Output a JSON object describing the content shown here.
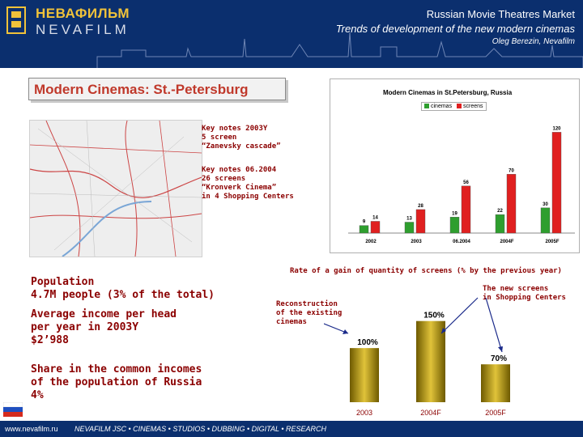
{
  "header": {
    "logo_ru": "НЕВАФИЛЬМ",
    "logo_en": "NEVAFILM",
    "title": "Russian Movie Theatres Market",
    "subtitle": "Trends of development of the new modern cinemas",
    "author": "Oleg Berezin, Nevafilm"
  },
  "section_title": "Modern Cinemas: St.-Petersburg",
  "notes": {
    "n2003": "Key notes 2003Y\n5 screen\n“Zanevsky cascade”",
    "n2004": "Key notes 06.2004\n26 screens\n“Kronverk Cinema”\nin 4 Shopping Centers"
  },
  "stats": {
    "population": "Population\n4.7M people (3% of the total)",
    "income": "Average income per head\nper year in 2003Y\n$2’988",
    "share": "Share in the common incomes\nof the population of Russia\n4%"
  },
  "annotations": {
    "rate_title": "Rate of a gain of quantity of screens (% by the previous year)",
    "new_screens": "The new screens\nin Shopping Centers",
    "reconstruction": "Reconstruction\nof the existing\ncinemas"
  },
  "footer": {
    "url": "www.nevafilm.ru",
    "tagline": "NEVAFILM JSC • CINEMAS • STUDIOS • DUBBING • DIGITAL • RESEARCH"
  },
  "colors": {
    "header_bg": "#0b2f6e",
    "accent_red": "#8b0000",
    "cinemas": "#2e9e2e",
    "screens": "#e02020",
    "gold": "#b8960a"
  },
  "chart_data": [
    {
      "type": "bar",
      "title": "Modern Cinemas in St.Petersburg, Russia",
      "categories": [
        "2002",
        "2003",
        "06.2004",
        "2004F",
        "2005F"
      ],
      "series": [
        {
          "name": "cinemas",
          "values": [
            9,
            13,
            19,
            22,
            30
          ]
        },
        {
          "name": "screens",
          "values": [
            14,
            28,
            56,
            70,
            120
          ]
        }
      ],
      "ylim": [
        0,
        130
      ],
      "legend": "top"
    },
    {
      "type": "bar",
      "title": "Rate of a gain of quantity of screens (% by the previous year)",
      "categories": [
        "2003",
        "2004F",
        "2005F"
      ],
      "values": [
        100,
        150,
        70
      ],
      "labels": [
        "100%",
        "150%",
        "70%"
      ],
      "ylim": [
        0,
        160
      ]
    }
  ]
}
